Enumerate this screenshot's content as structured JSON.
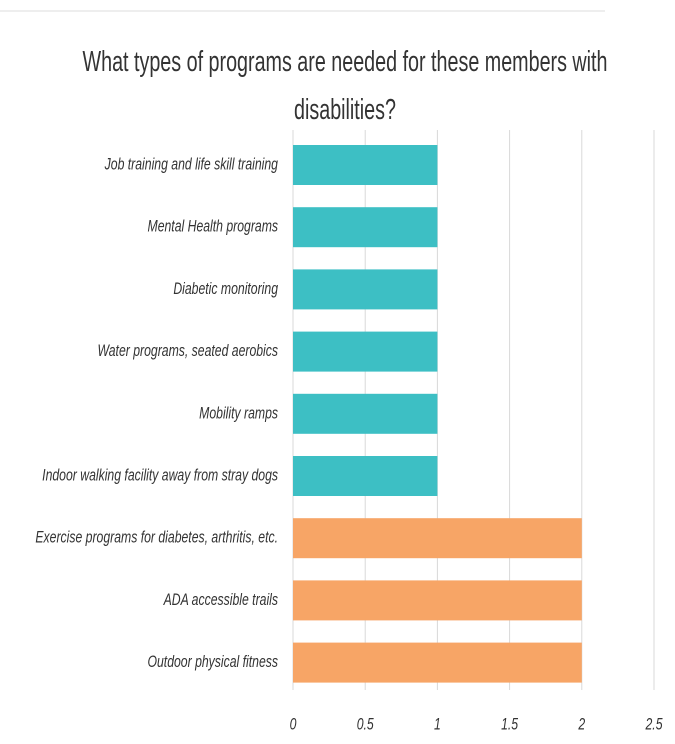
{
  "chart_data": {
    "type": "barh",
    "title": "What types of programs are needed for these members with disabilities?",
    "categories": [
      "Job training and life skill training",
      "Mental Health programs",
      "Diabetic monitoring",
      "Water programs, seated aerobics",
      "Mobility ramps",
      "Indoor walking facility away from stray dogs",
      "Exercise programs for diabetes, arthritis, etc.",
      "ADA accessible trails",
      "Outdoor physical fitness"
    ],
    "values": [
      1,
      1,
      1,
      1,
      1,
      1,
      2,
      2,
      2
    ],
    "colors": [
      "#3dbfc4",
      "#3dbfc4",
      "#3dbfc4",
      "#3dbfc4",
      "#3dbfc4",
      "#3dbfc4",
      "#f7a566",
      "#f7a566",
      "#f7a566"
    ],
    "xlim": [
      0,
      2.5
    ],
    "xticks": [
      0,
      0.5,
      1,
      1.5,
      2,
      2.5
    ],
    "grid": true
  }
}
